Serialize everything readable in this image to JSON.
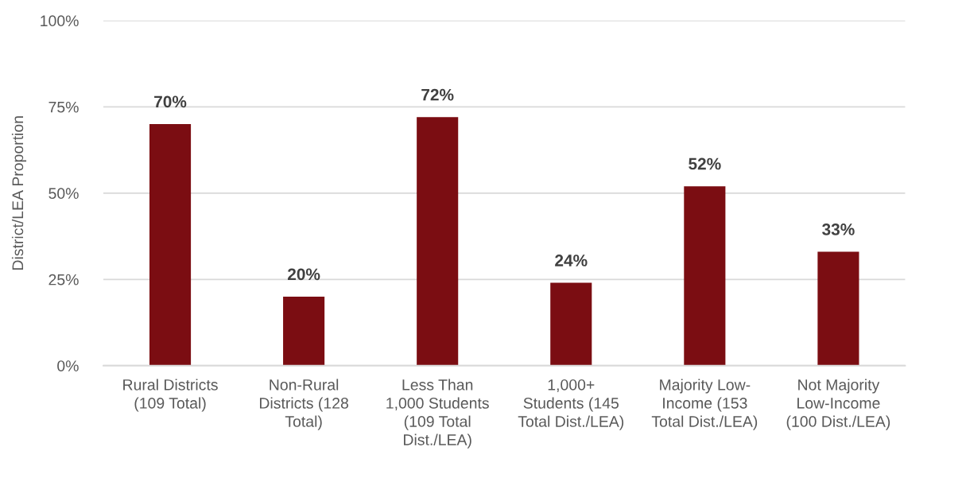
{
  "chart_data": {
    "type": "bar",
    "ylabel": "District/LEA Proportion",
    "categories": [
      "Rural Districts\n(109 Total)",
      "Non-Rural\nDistricts (128\nTotal)",
      "Less Than\n1,000 Students\n(109 Total\nDist./LEA)",
      "1,000+\nStudents (145\nTotal Dist./LEA)",
      "Majority Low-\nIncome (153\nTotal Dist./LEA)",
      "Not Majority\nLow-Income\n(100 Dist./LEA)"
    ],
    "values": [
      70,
      20,
      72,
      24,
      52,
      33
    ],
    "value_labels": [
      "70%",
      "20%",
      "72%",
      "24%",
      "52%",
      "33%"
    ],
    "color": "#7b0d12",
    "ylim": [
      0,
      100
    ],
    "yticks": [
      {
        "value": 0,
        "label": "0%"
      },
      {
        "value": 25,
        "label": "25%"
      },
      {
        "value": 50,
        "label": "50%"
      },
      {
        "value": 75,
        "label": "75%"
      },
      {
        "value": 100,
        "label": "100%"
      }
    ],
    "grid": "y"
  }
}
